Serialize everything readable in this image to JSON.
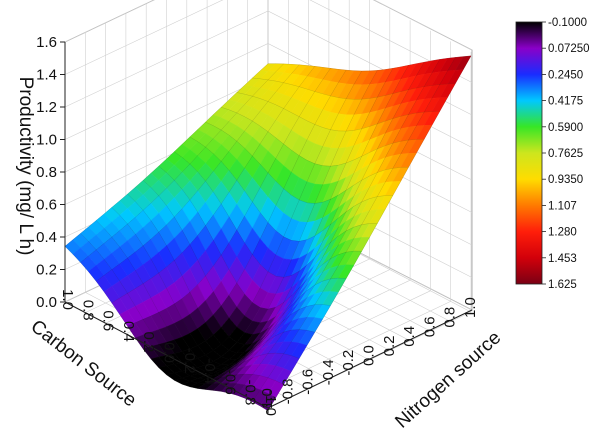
{
  "chart_data": {
    "type": "surface3d",
    "title": "",
    "zlabel": "Productivity (mg/ L h)",
    "xlabel": "Carbon Source",
    "ylabel": "Nitrogen source",
    "x_ticks": [
      "-1.0",
      "-0.8",
      "-0.6",
      "-0.4",
      "-0.2",
      "0.0",
      "0.2",
      "0.4",
      "0.6",
      "0.8",
      "1.0"
    ],
    "y_ticks": [
      "-1.0",
      "-0.8",
      "-0.6",
      "-0.4",
      "-0.2",
      "0.0",
      "0.2",
      "0.4",
      "0.6",
      "0.8",
      "1.0"
    ],
    "z_ticks": [
      "0.0",
      "0.2",
      "0.4",
      "0.6",
      "0.8",
      "1.0",
      "1.2",
      "1.4",
      "1.6"
    ],
    "xlim": [
      -1.0,
      1.0
    ],
    "ylim": [
      -1.0,
      1.0
    ],
    "zlim": [
      0.0,
      1.6
    ],
    "grid": true,
    "surface": {
      "corners": [
        {
          "carbon": 1.0,
          "nitrogen": -1.0,
          "productivity": 0.36
        },
        {
          "carbon": -1.0,
          "nitrogen": -1.0,
          "productivity": 0.0
        },
        {
          "carbon": 1.0,
          "nitrogen": 1.0,
          "productivity": 0.88
        },
        {
          "carbon": -1.0,
          "nitrogen": 1.0,
          "productivity": 1.58
        }
      ],
      "minimum": {
        "carbon": 0.0,
        "nitrogen": -0.25,
        "productivity": -0.1
      },
      "description": "Productivity is lowest near the carbon center at low nitrogen and rises strongly toward low carbon and high nitrogen."
    },
    "colorbar": {
      "ticks": [
        "-0.1000",
        "0.07250",
        "0.2450",
        "0.4175",
        "0.5900",
        "0.7625",
        "0.9350",
        "1.107",
        "1.280",
        "1.453",
        "1.625"
      ],
      "colors": [
        "#000000",
        "#8a00c8",
        "#1a2cff",
        "#00c8ff",
        "#37e626",
        "#cde61e",
        "#ffdc00",
        "#ff7a00",
        "#ff1e0a",
        "#d2000a",
        "#7a0014"
      ]
    }
  }
}
